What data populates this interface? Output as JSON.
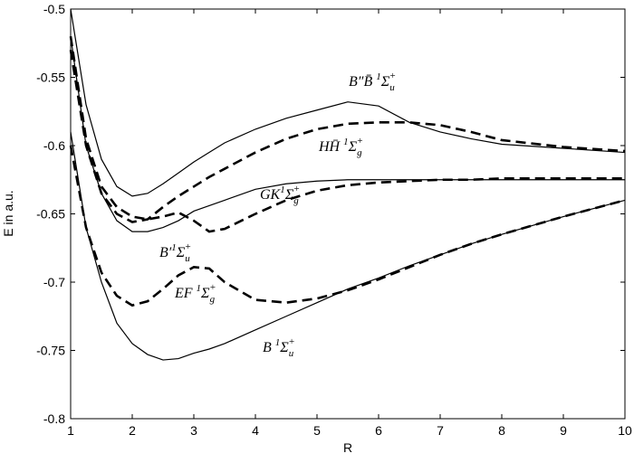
{
  "chart_data": {
    "type": "line",
    "xlabel": "R",
    "ylabel": "E in a.u.",
    "xlim": [
      1,
      10
    ],
    "ylim": [
      -0.8,
      -0.5
    ],
    "xticks": [
      1,
      2,
      3,
      4,
      5,
      6,
      7,
      8,
      9,
      10
    ],
    "yticks": [
      -0.8,
      -0.75,
      -0.7,
      -0.65,
      -0.6,
      -0.55,
      -0.5
    ],
    "x": [
      1,
      1.25,
      1.5,
      1.75,
      2,
      2.25,
      2.5,
      2.75,
      3,
      3.25,
      3.5,
      4,
      4.5,
      5,
      5.5,
      6,
      6.5,
      7,
      7.5,
      8,
      9,
      10
    ],
    "series": [
      {
        "color": "#000000",
        "dashed": false,
        "values": [
          -0.5,
          -0.57,
          -0.61,
          -0.63,
          -0.637,
          -0.635,
          -0.628,
          -0.62,
          -0.612,
          -0.605,
          -0.598,
          -0.588,
          -0.58,
          -0.574,
          -0.568,
          -0.571,
          -0.583,
          -0.59,
          -0.595,
          -0.599,
          -0.602,
          -0.605
        ]
      },
      {
        "color": "#000000",
        "dashed": true,
        "values": [
          -0.53,
          -0.6,
          -0.635,
          -0.65,
          -0.656,
          -0.654,
          -0.645,
          -0.637,
          -0.63,
          -0.623,
          -0.617,
          -0.605,
          -0.595,
          -0.588,
          -0.584,
          -0.583,
          -0.583,
          -0.585,
          -0.59,
          -0.596,
          -0.601,
          -0.604
        ]
      },
      {
        "color": "#000000",
        "dashed": false,
        "values": [
          -0.52,
          -0.6,
          -0.635,
          -0.655,
          -0.663,
          -0.663,
          -0.66,
          -0.655,
          -0.648,
          -0.644,
          -0.64,
          -0.632,
          -0.628,
          -0.626,
          -0.625,
          -0.625,
          -0.625,
          -0.625,
          -0.625,
          -0.625,
          -0.625,
          -0.625
        ]
      },
      {
        "color": "#000000",
        "dashed": true,
        "values": [
          -0.52,
          -0.595,
          -0.63,
          -0.645,
          -0.652,
          -0.654,
          -0.652,
          -0.649,
          -0.655,
          -0.663,
          -0.661,
          -0.65,
          -0.64,
          -0.633,
          -0.629,
          -0.627,
          -0.626,
          -0.625,
          -0.625,
          -0.624,
          -0.624,
          -0.624
        ]
      },
      {
        "color": "#000000",
        "dashed": true,
        "values": [
          -0.6,
          -0.66,
          -0.693,
          -0.71,
          -0.717,
          -0.714,
          -0.705,
          -0.695,
          -0.689,
          -0.69,
          -0.7,
          -0.713,
          -0.715,
          -0.712,
          -0.706,
          -0.698,
          -0.689,
          -0.68,
          -0.672,
          -0.665,
          -0.652,
          -0.64
        ]
      },
      {
        "color": "#000000",
        "dashed": false,
        "values": [
          -0.59,
          -0.66,
          -0.7,
          -0.73,
          -0.745,
          -0.753,
          -0.757,
          -0.756,
          -0.752,
          -0.749,
          -0.745,
          -0.735,
          -0.725,
          -0.715,
          -0.705,
          -0.697,
          -0.688,
          -0.68,
          -0.672,
          -0.665,
          -0.652,
          -0.64
        ]
      }
    ],
    "annotations": [
      [
        {
          "text": "B″B̄ "
        },
        {
          "text": "1",
          "shift": "sup"
        },
        {
          "text": "Σ"
        },
        {
          "text": "u",
          "shift": "sub"
        },
        {
          "text": "+",
          "shift": "sup"
        }
      ],
      [
        {
          "text": "HH̄ "
        },
        {
          "text": "1",
          "shift": "sup"
        },
        {
          "text": "Σ"
        },
        {
          "text": "g",
          "shift": "sub"
        },
        {
          "text": "+",
          "shift": "sup"
        }
      ],
      [
        {
          "text": "GK"
        },
        {
          "text": "1",
          "shift": "sup"
        },
        {
          "text": "Σ"
        },
        {
          "text": "g",
          "shift": "sub"
        },
        {
          "text": "+",
          "shift": "sup"
        }
      ],
      [
        {
          "text": "B′"
        },
        {
          "text": "1",
          "shift": "sup"
        },
        {
          "text": "Σ"
        },
        {
          "text": "u",
          "shift": "sub"
        },
        {
          "text": "+",
          "shift": "sup"
        }
      ],
      [
        {
          "text": "EF "
        },
        {
          "text": "1",
          "shift": "sup"
        },
        {
          "text": "Σ"
        },
        {
          "text": "g",
          "shift": "sub"
        },
        {
          "text": "+",
          "shift": "sup"
        }
      ],
      [
        {
          "text": "B "
        },
        {
          "text": "1",
          "shift": "sup"
        },
        {
          "text": "Σ"
        },
        {
          "text": "u",
          "shift": "sub"
        },
        {
          "text": "+",
          "shift": "sup"
        }
      ]
    ]
  }
}
